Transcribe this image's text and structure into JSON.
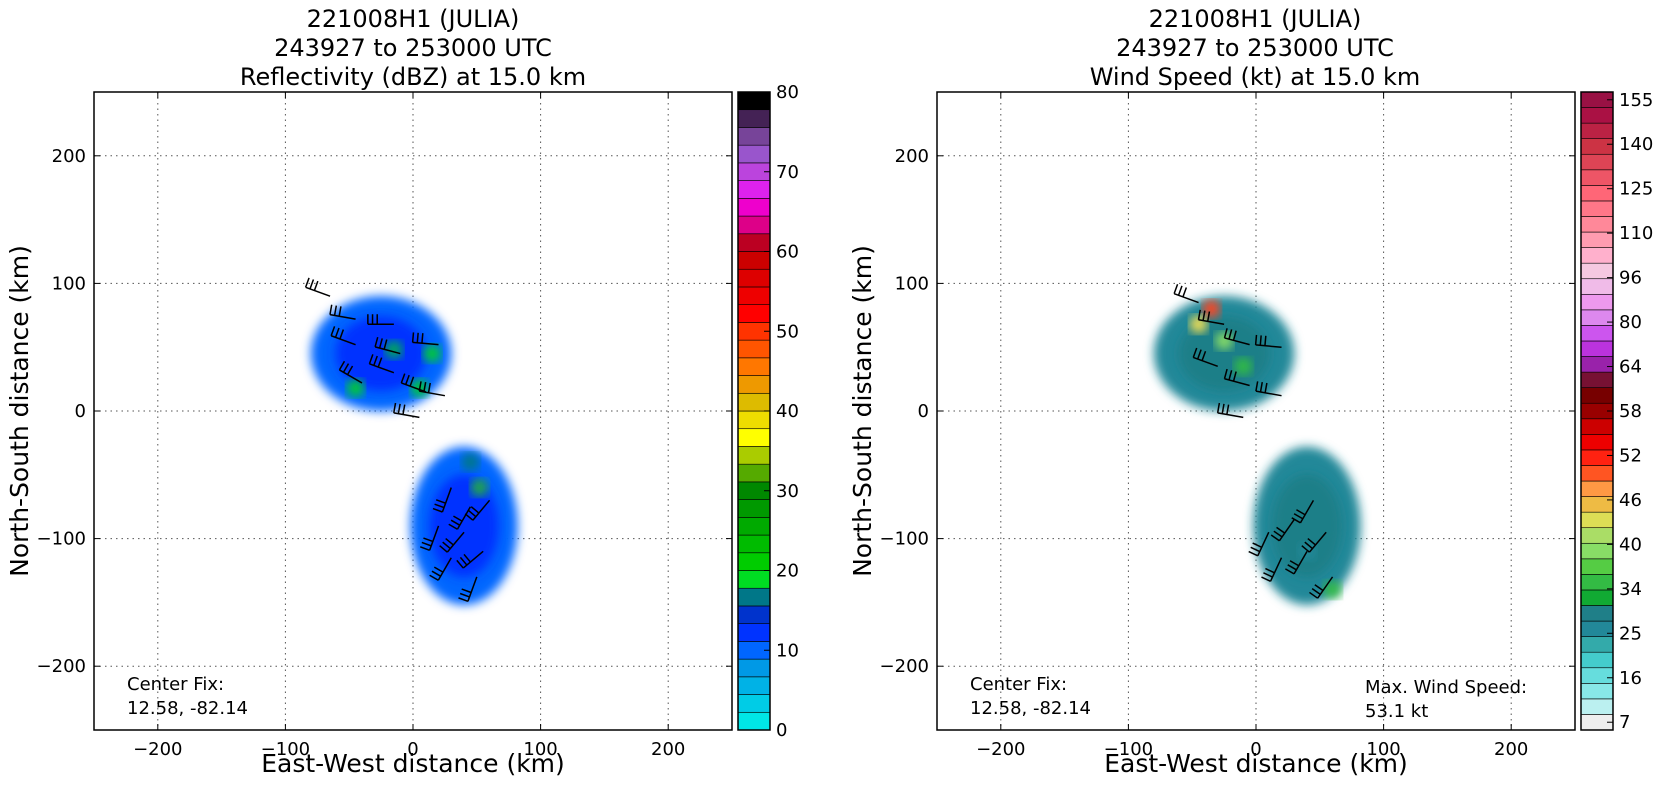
{
  "chart_data": [
    {
      "type": "heatmap",
      "title_lines": [
        "221008H1 (JULIA)",
        "243927 to 253000 UTC",
        "Reflectivity (dBZ) at 15.0 km"
      ],
      "xlabel": "East-West distance (km)",
      "ylabel": "North-South distance (km)",
      "xlim": [
        -250,
        250
      ],
      "ylim": [
        -250,
        250
      ],
      "xticks": [
        -200,
        -100,
        0,
        100,
        200
      ],
      "yticks": [
        -200,
        -100,
        0,
        100,
        200
      ],
      "xticklabels": [
        "−200",
        "−100",
        "0",
        "100",
        "200"
      ],
      "yticklabels": [
        "−200",
        "−100",
        "0",
        "100",
        "200"
      ],
      "grid": true,
      "annotation": [
        "Center Fix:",
        "12.58, -82.14"
      ],
      "colorbar": {
        "min": 0,
        "max": 80,
        "step": 2.5,
        "ticks": [
          0,
          10,
          20,
          30,
          40,
          50,
          60,
          70,
          80
        ],
        "colors": [
          "#00e6e6",
          "#00cce6",
          "#00b2e6",
          "#0099e6",
          "#0066ff",
          "#0033ff",
          "#0033cc",
          "#007788",
          "#00dd22",
          "#00cc00",
          "#00bb00",
          "#00aa00",
          "#009900",
          "#008800",
          "#55aa00",
          "#aacc00",
          "#ffff00",
          "#eedd00",
          "#ddbb00",
          "#ee9900",
          "#ff7700",
          "#ff5500",
          "#ff3300",
          "#ff0000",
          "#ee0000",
          "#dd0000",
          "#cc0000",
          "#bb0022",
          "#dd0088",
          "#ee00cc",
          "#dd22ee",
          "#bb44dd",
          "#9955cc",
          "#774499",
          "#442255",
          "#000000"
        ]
      },
      "features": [
        {
          "name": "north-cluster",
          "cx": -25,
          "cy": 45,
          "rx": 55,
          "ry": 45,
          "value": 12
        },
        {
          "name": "south-cluster",
          "cx": 40,
          "cy": -90,
          "rx": 42,
          "ry": 62,
          "value": 11
        }
      ],
      "wind_barbs": [
        {
          "x": -65,
          "y": 90,
          "dir": 290
        },
        {
          "x": -45,
          "y": 72,
          "dir": 280
        },
        {
          "x": -15,
          "y": 68,
          "dir": 270
        },
        {
          "x": -45,
          "y": 52,
          "dir": 290
        },
        {
          "x": -10,
          "y": 45,
          "dir": 285
        },
        {
          "x": 20,
          "y": 52,
          "dir": 275
        },
        {
          "x": -40,
          "y": 22,
          "dir": 300
        },
        {
          "x": -15,
          "y": 30,
          "dir": 290
        },
        {
          "x": 10,
          "y": 15,
          "dir": 290
        },
        {
          "x": 25,
          "y": 12,
          "dir": 280
        },
        {
          "x": 5,
          "y": -5,
          "dir": 280
        },
        {
          "x": 30,
          "y": -60,
          "dir": 200
        },
        {
          "x": 45,
          "y": -75,
          "dir": 210
        },
        {
          "x": 60,
          "y": -70,
          "dir": 220
        },
        {
          "x": 20,
          "y": -90,
          "dir": 200
        },
        {
          "x": 40,
          "y": -95,
          "dir": 220
        },
        {
          "x": 55,
          "y": -110,
          "dir": 230
        },
        {
          "x": 30,
          "y": -115,
          "dir": 210
        },
        {
          "x": 50,
          "y": -130,
          "dir": 200
        }
      ]
    },
    {
      "type": "heatmap",
      "title_lines": [
        "221008H1 (JULIA)",
        "243927 to 253000 UTC",
        "Wind Speed (kt) at 15.0 km"
      ],
      "xlabel": "East-West distance (km)",
      "ylabel": "North-South distance (km)",
      "xlim": [
        -250,
        250
      ],
      "ylim": [
        -250,
        250
      ],
      "xticks": [
        -200,
        -100,
        0,
        100,
        200
      ],
      "yticks": [
        -200,
        -100,
        0,
        100,
        200
      ],
      "xticklabels": [
        "−200",
        "−100",
        "0",
        "100",
        "200"
      ],
      "yticklabels": [
        "−200",
        "−100",
        "0",
        "100",
        "200"
      ],
      "grid": true,
      "annotation": [
        "Center Fix:",
        "12.58, -82.14"
      ],
      "annotation2": [
        "Max. Wind Speed:",
        "53.1 kt"
      ],
      "max_wind_kt": 53.1,
      "colorbar": {
        "ticks": [
          7,
          16,
          25,
          34,
          40,
          46,
          52,
          58,
          64,
          80,
          96,
          110,
          125,
          140,
          155
        ],
        "colors": [
          "#eeeeee",
          "#bbf0f0",
          "#88e8e8",
          "#66dddd",
          "#44cccc",
          "#33aaaa",
          "#228899",
          "#1f7f88",
          "#11aa33",
          "#33bb44",
          "#55cc44",
          "#88dd66",
          "#aadd66",
          "#dddd55",
          "#eebb44",
          "#ff9944",
          "#ff5522",
          "#ff2211",
          "#ee0000",
          "#cc0000",
          "#990000",
          "#770000",
          "#771133",
          "#9922aa",
          "#bb33dd",
          "#cc55ee",
          "#dd88ee",
          "#ee99ee",
          "#f0bbe8",
          "#f5c8e0",
          "#ffb0cc",
          "#ff9cb0",
          "#ff8899",
          "#ff7788",
          "#ff6677",
          "#ee5566",
          "#dd4455",
          "#cc3344",
          "#bb2244",
          "#aa1144",
          "#991144"
        ]
      },
      "features": [
        {
          "name": "north-cluster",
          "cx": -25,
          "cy": 45,
          "rx": 55,
          "ry": 45,
          "value": 28
        },
        {
          "name": "south-cluster",
          "cx": 40,
          "cy": -90,
          "rx": 42,
          "ry": 62,
          "value": 22
        }
      ],
      "wind_barbs": [
        {
          "x": -45,
          "y": 85,
          "dir": 290
        },
        {
          "x": -25,
          "y": 68,
          "dir": 280
        },
        {
          "x": -5,
          "y": 52,
          "dir": 285
        },
        {
          "x": 20,
          "y": 50,
          "dir": 275
        },
        {
          "x": -30,
          "y": 35,
          "dir": 290
        },
        {
          "x": -5,
          "y": 20,
          "dir": 285
        },
        {
          "x": 20,
          "y": 12,
          "dir": 280
        },
        {
          "x": -10,
          "y": -5,
          "dir": 280
        },
        {
          "x": 45,
          "y": -70,
          "dir": 210
        },
        {
          "x": 30,
          "y": -85,
          "dir": 215
        },
        {
          "x": 10,
          "y": -95,
          "dir": 205
        },
        {
          "x": 55,
          "y": -95,
          "dir": 220
        },
        {
          "x": 40,
          "y": -110,
          "dir": 210
        },
        {
          "x": 20,
          "y": -115,
          "dir": 205
        },
        {
          "x": 60,
          "y": -130,
          "dir": 215
        }
      ]
    }
  ]
}
